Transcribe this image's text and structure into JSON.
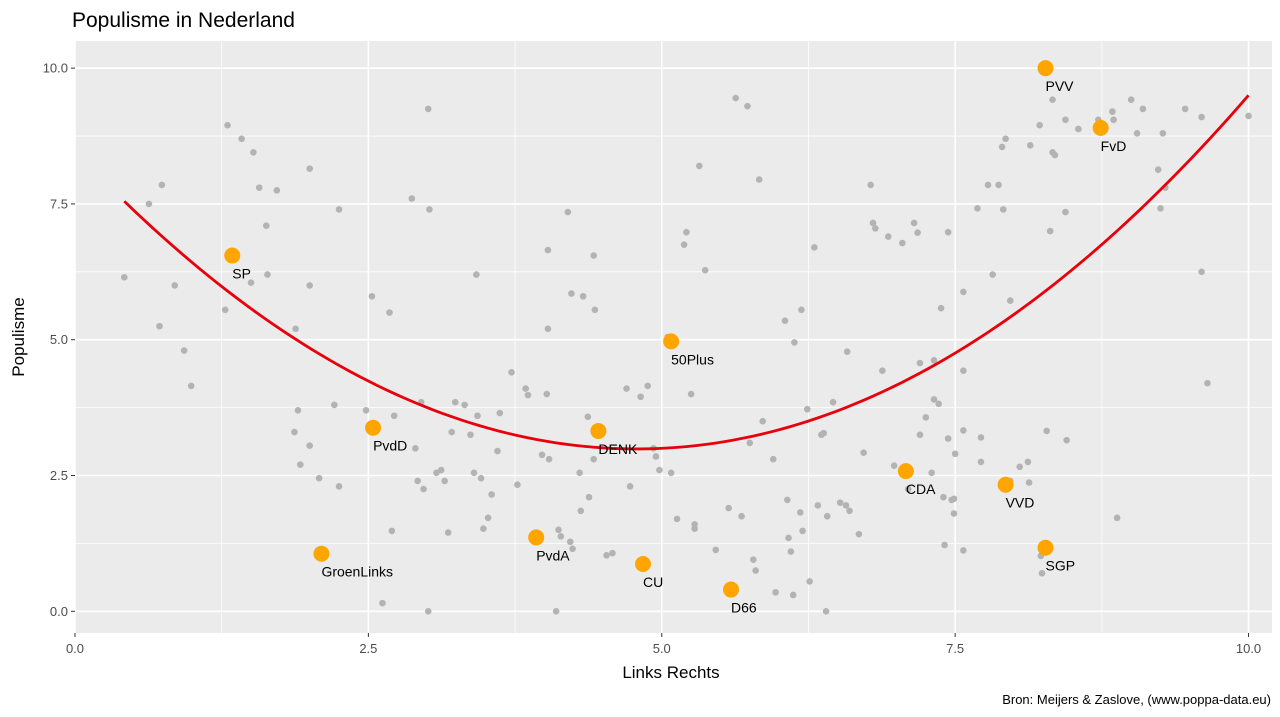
{
  "chart_data": {
    "type": "scatter",
    "title": "Populisme in Nederland",
    "xlabel": "Links Rechts",
    "ylabel": "Populisme",
    "caption": "Bron: Meijers & Zaslove, (www.poppa-data.eu)",
    "xlim": [
      0,
      10.2
    ],
    "ylim": [
      -0.4,
      10.5
    ],
    "x_ticks": [
      0,
      2.5,
      5,
      7.5,
      10
    ],
    "x_tick_labels": [
      "0.0",
      "2.5",
      "5.0",
      "7.5",
      "10.0"
    ],
    "y_ticks": [
      0,
      2.5,
      5,
      7.5,
      10
    ],
    "y_tick_labels": [
      "0.0",
      "2.5",
      "5.0",
      "7.5",
      "10.0"
    ],
    "grid": true,
    "colors": {
      "panel": "#ebebeb",
      "grid": "#ffffff",
      "expert_point": "#b3b3b3",
      "party_point": "#ffa500",
      "curve": "#e8000b"
    },
    "trend_curve": {
      "type": "quadratic",
      "x_range": [
        0.42,
        10
      ],
      "points": [
        [
          0.42,
          7.55
        ],
        [
          5,
          3.0
        ],
        [
          10,
          9.5
        ]
      ]
    },
    "parties": [
      {
        "name": "PVV",
        "x": 8.27,
        "y": 10.0
      },
      {
        "name": "FvD",
        "x": 8.74,
        "y": 8.9
      },
      {
        "name": "SP",
        "x": 1.34,
        "y": 6.55
      },
      {
        "name": "50Plus",
        "x": 5.08,
        "y": 4.97
      },
      {
        "name": "PvdD",
        "x": 2.54,
        "y": 3.38
      },
      {
        "name": "DENK",
        "x": 4.46,
        "y": 3.32
      },
      {
        "name": "CDA",
        "x": 7.08,
        "y": 2.58
      },
      {
        "name": "VVD",
        "x": 7.93,
        "y": 2.33
      },
      {
        "name": "GroenLinks",
        "x": 2.1,
        "y": 1.06
      },
      {
        "name": "PvdA",
        "x": 3.93,
        "y": 1.36
      },
      {
        "name": "CU",
        "x": 4.84,
        "y": 0.87
      },
      {
        "name": "SGP",
        "x": 8.27,
        "y": 1.17
      },
      {
        "name": "D66",
        "x": 5.59,
        "y": 0.4
      }
    ],
    "expert_points": [
      [
        0.42,
        6.15
      ],
      [
        0.63,
        7.5
      ],
      [
        0.74,
        7.85
      ],
      [
        0.72,
        5.25
      ],
      [
        0.85,
        6.0
      ],
      [
        0.93,
        4.8
      ],
      [
        0.99,
        4.15
      ],
      [
        1.3,
        8.95
      ],
      [
        1.28,
        5.55
      ],
      [
        1.42,
        8.7
      ],
      [
        1.52,
        8.45
      ],
      [
        1.57,
        7.8
      ],
      [
        1.63,
        7.1
      ],
      [
        1.64,
        6.2
      ],
      [
        1.72,
        7.75
      ],
      [
        1.5,
        6.05
      ],
      [
        1.88,
        5.2
      ],
      [
        1.87,
        3.3
      ],
      [
        1.9,
        3.7
      ],
      [
        1.92,
        2.7
      ],
      [
        2.0,
        8.15
      ],
      [
        2.0,
        6.0
      ],
      [
        2.0,
        3.05
      ],
      [
        2.08,
        2.45
      ],
      [
        2.25,
        7.4
      ],
      [
        2.25,
        2.3
      ],
      [
        2.21,
        3.8
      ],
      [
        2.48,
        3.7
      ],
      [
        2.53,
        5.8
      ],
      [
        2.68,
        5.5
      ],
      [
        2.72,
        3.6
      ],
      [
        2.7,
        1.48
      ],
      [
        2.62,
        0.15
      ],
      [
        2.87,
        7.6
      ],
      [
        2.95,
        3.85
      ],
      [
        2.9,
        3.0
      ],
      [
        2.92,
        2.4
      ],
      [
        2.97,
        2.25
      ],
      [
        3.01,
        9.25
      ],
      [
        3.02,
        7.4
      ],
      [
        3.01,
        0.0
      ],
      [
        3.08,
        2.55
      ],
      [
        3.12,
        2.6
      ],
      [
        3.15,
        2.4
      ],
      [
        3.18,
        1.45
      ],
      [
        3.24,
        3.85
      ],
      [
        3.21,
        3.3
      ],
      [
        3.32,
        3.8
      ],
      [
        3.37,
        3.25
      ],
      [
        3.42,
        6.2
      ],
      [
        3.43,
        3.6
      ],
      [
        3.4,
        2.55
      ],
      [
        3.46,
        2.45
      ],
      [
        3.48,
        1.52
      ],
      [
        3.52,
        1.72
      ],
      [
        3.55,
        2.15
      ],
      [
        3.62,
        3.65
      ],
      [
        3.6,
        2.95
      ],
      [
        3.72,
        4.4
      ],
      [
        3.77,
        2.33
      ],
      [
        3.84,
        4.1
      ],
      [
        3.86,
        3.98
      ],
      [
        3.98,
        2.88
      ],
      [
        4.03,
        6.65
      ],
      [
        4.03,
        5.2
      ],
      [
        4.02,
        4.0
      ],
      [
        4.04,
        2.8
      ],
      [
        4.1,
        0.0
      ],
      [
        4.12,
        1.5
      ],
      [
        4.14,
        1.38
      ],
      [
        4.2,
        7.35
      ],
      [
        4.23,
        5.85
      ],
      [
        4.22,
        1.28
      ],
      [
        4.24,
        1.15
      ],
      [
        4.3,
        2.55
      ],
      [
        4.31,
        1.85
      ],
      [
        4.33,
        5.8
      ],
      [
        4.37,
        3.58
      ],
      [
        4.38,
        2.1
      ],
      [
        4.42,
        6.55
      ],
      [
        4.42,
        2.8
      ],
      [
        4.43,
        5.55
      ],
      [
        4.53,
        1.03
      ],
      [
        4.58,
        1.07
      ],
      [
        4.7,
        4.1
      ],
      [
        4.73,
        2.3
      ],
      [
        4.82,
        3.95
      ],
      [
        4.88,
        4.15
      ],
      [
        4.93,
        3.0
      ],
      [
        4.95,
        2.85
      ],
      [
        4.98,
        2.6
      ],
      [
        5.05,
        5.05
      ],
      [
        5.08,
        2.55
      ],
      [
        5.13,
        1.7
      ],
      [
        5.19,
        6.75
      ],
      [
        5.21,
        6.98
      ],
      [
        5.25,
        4.0
      ],
      [
        5.28,
        1.6
      ],
      [
        5.28,
        1.52
      ],
      [
        5.32,
        8.2
      ],
      [
        5.37,
        6.28
      ],
      [
        5.46,
        1.13
      ],
      [
        5.57,
        1.9
      ],
      [
        5.63,
        9.45
      ],
      [
        5.68,
        1.75
      ],
      [
        5.73,
        9.3
      ],
      [
        5.75,
        3.1
      ],
      [
        5.78,
        0.95
      ],
      [
        5.8,
        0.75
      ],
      [
        5.83,
        7.95
      ],
      [
        5.86,
        3.5
      ],
      [
        5.95,
        2.8
      ],
      [
        5.97,
        0.35
      ],
      [
        6.05,
        5.35
      ],
      [
        6.07,
        2.05
      ],
      [
        6.08,
        1.35
      ],
      [
        6.1,
        1.1
      ],
      [
        6.12,
        0.3
      ],
      [
        6.13,
        4.95
      ],
      [
        6.19,
        5.55
      ],
      [
        6.18,
        1.82
      ],
      [
        6.2,
        1.48
      ],
      [
        6.24,
        3.72
      ],
      [
        6.26,
        0.55
      ],
      [
        6.3,
        6.7
      ],
      [
        6.33,
        1.95
      ],
      [
        6.36,
        3.25
      ],
      [
        6.38,
        3.28
      ],
      [
        6.4,
        0.0
      ],
      [
        6.41,
        1.75
      ],
      [
        6.46,
        3.85
      ],
      [
        6.52,
        2.0
      ],
      [
        6.57,
        1.95
      ],
      [
        6.58,
        4.78
      ],
      [
        6.6,
        1.85
      ],
      [
        6.68,
        1.42
      ],
      [
        6.72,
        2.92
      ],
      [
        6.78,
        7.85
      ],
      [
        6.8,
        7.15
      ],
      [
        6.82,
        7.05
      ],
      [
        6.88,
        4.43
      ],
      [
        6.93,
        6.9
      ],
      [
        6.98,
        2.68
      ],
      [
        7.05,
        6.78
      ],
      [
        7.1,
        2.25
      ],
      [
        7.15,
        7.15
      ],
      [
        7.18,
        6.97
      ],
      [
        7.2,
        4.57
      ],
      [
        7.2,
        3.25
      ],
      [
        7.25,
        3.57
      ],
      [
        7.3,
        2.55
      ],
      [
        7.32,
        4.62
      ],
      [
        7.32,
        3.9
      ],
      [
        7.36,
        3.82
      ],
      [
        7.38,
        5.58
      ],
      [
        7.4,
        2.1
      ],
      [
        7.41,
        1.22
      ],
      [
        7.44,
        6.98
      ],
      [
        7.44,
        3.18
      ],
      [
        7.47,
        2.05
      ],
      [
        7.49,
        2.07
      ],
      [
        7.49,
        1.8
      ],
      [
        7.5,
        2.9
      ],
      [
        7.57,
        5.88
      ],
      [
        7.57,
        4.43
      ],
      [
        7.57,
        3.33
      ],
      [
        7.57,
        1.12
      ],
      [
        7.69,
        7.42
      ],
      [
        7.72,
        3.2
      ],
      [
        7.72,
        2.75
      ],
      [
        7.78,
        7.85
      ],
      [
        7.82,
        6.2
      ],
      [
        7.87,
        7.85
      ],
      [
        7.9,
        8.55
      ],
      [
        7.91,
        7.4
      ],
      [
        7.93,
        8.7
      ],
      [
        7.97,
        5.72
      ],
      [
        7.97,
        2.4
      ],
      [
        8.05,
        2.66
      ],
      [
        8.12,
        2.75
      ],
      [
        8.13,
        2.37
      ],
      [
        8.14,
        8.58
      ],
      [
        8.22,
        8.95
      ],
      [
        8.23,
        1.02
      ],
      [
        8.24,
        0.7
      ],
      [
        8.28,
        3.32
      ],
      [
        8.31,
        7.0
      ],
      [
        8.33,
        9.42
      ],
      [
        8.33,
        8.45
      ],
      [
        8.35,
        8.4
      ],
      [
        8.44,
        9.05
      ],
      [
        8.44,
        7.35
      ],
      [
        8.45,
        3.15
      ],
      [
        8.55,
        8.88
      ],
      [
        8.72,
        9.05
      ],
      [
        8.84,
        9.2
      ],
      [
        8.85,
        9.05
      ],
      [
        8.88,
        1.72
      ],
      [
        9.0,
        9.42
      ],
      [
        9.05,
        8.8
      ],
      [
        9.1,
        9.25
      ],
      [
        9.23,
        8.13
      ],
      [
        9.25,
        7.42
      ],
      [
        9.27,
        8.8
      ],
      [
        9.29,
        7.8
      ],
      [
        9.46,
        9.25
      ],
      [
        9.6,
        9.1
      ],
      [
        9.6,
        6.25
      ],
      [
        9.65,
        4.2
      ],
      [
        10.0,
        9.12
      ]
    ]
  }
}
